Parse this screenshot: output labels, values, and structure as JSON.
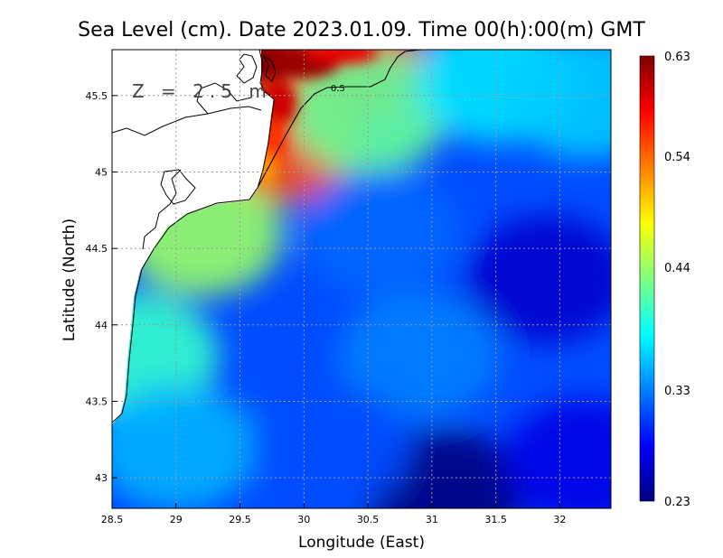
{
  "chart_data": {
    "type": "heatmap",
    "title": "Sea Level (cm). Date 2023.01.09. Time 00(h):00(m) GMT",
    "xlabel": "Longitude (East)",
    "ylabel": "Latitude (North)",
    "depth_label": "Z = 2.5 m",
    "xlim": [
      28.5,
      32.4
    ],
    "ylim": [
      42.8,
      45.8
    ],
    "x_ticks": [
      28.5,
      29,
      29.5,
      30,
      30.5,
      31,
      31.5,
      32
    ],
    "x_tick_labels": [
      "28.5",
      "29",
      "29.5",
      "30",
      "30.5",
      "31",
      "31.5",
      "32"
    ],
    "y_ticks": [
      43,
      43.5,
      44,
      44.5,
      45,
      45.5
    ],
    "y_tick_labels": [
      "43",
      "43.5",
      "44",
      "44.5",
      "45",
      "45.5"
    ],
    "grid": true,
    "colorbar": {
      "min": 0.23,
      "max": 0.63,
      "ticks": [
        0.23,
        0.33,
        0.44,
        0.54,
        0.63
      ],
      "tick_labels": [
        "0.23",
        "0.33",
        "0.44",
        "0.54",
        "0.63"
      ],
      "colormap": "jet",
      "colors": [
        "#00007f",
        "#0000ff",
        "#007fff",
        "#00ffff",
        "#7fff7f",
        "#ffff00",
        "#ff7f00",
        "#ff0000",
        "#7f0000"
      ]
    },
    "contours": [
      {
        "level": 0.5,
        "label": "0.5"
      }
    ],
    "field_samples": [
      {
        "lon": 29.9,
        "lat": 45.65,
        "value": 0.63
      },
      {
        "lon": 30.3,
        "lat": 45.75,
        "value": 0.58
      },
      {
        "lon": 29.8,
        "lat": 45.2,
        "value": 0.55
      },
      {
        "lon": 29.2,
        "lat": 44.6,
        "value": 0.44
      },
      {
        "lon": 28.7,
        "lat": 43.8,
        "value": 0.4
      },
      {
        "lon": 29.0,
        "lat": 43.2,
        "value": 0.35
      },
      {
        "lon": 30.5,
        "lat": 45.4,
        "value": 0.42
      },
      {
        "lon": 31.5,
        "lat": 45.6,
        "value": 0.37
      },
      {
        "lon": 32.2,
        "lat": 45.5,
        "value": 0.36
      },
      {
        "lon": 30.6,
        "lat": 44.6,
        "value": 0.32
      },
      {
        "lon": 30.9,
        "lat": 43.8,
        "value": 0.33
      },
      {
        "lon": 31.9,
        "lat": 44.3,
        "value": 0.26
      },
      {
        "lon": 31.1,
        "lat": 42.9,
        "value": 0.23
      },
      {
        "lon": 30.2,
        "lat": 43.2,
        "value": 0.31
      },
      {
        "lon": 32.2,
        "lat": 43.1,
        "value": 0.27
      }
    ]
  }
}
